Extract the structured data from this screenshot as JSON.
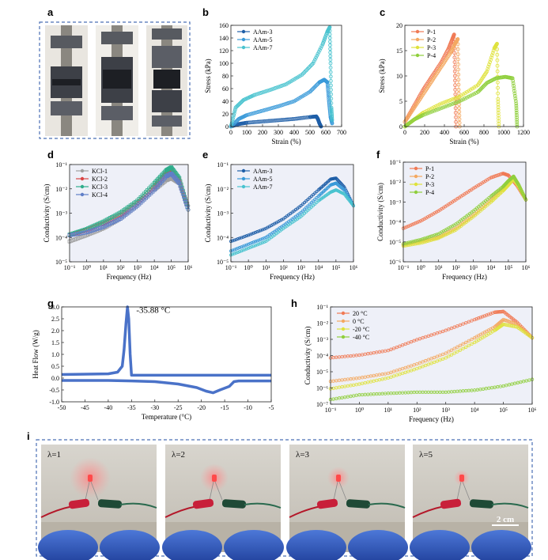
{
  "panels": {
    "a": {
      "label": "a"
    },
    "b": {
      "label": "b",
      "chart_data": {
        "type": "line",
        "xlabel": "Strain (%)",
        "ylabel": "Stress (kPa)",
        "xlim": [
          0,
          700
        ],
        "ylim": [
          0,
          160
        ],
        "xticks": [
          "0",
          "100",
          "200",
          "300",
          "400",
          "500",
          "600",
          "700"
        ],
        "yticks": [
          "0",
          "20",
          "40",
          "60",
          "80",
          "100",
          "120",
          "140",
          "160"
        ],
        "legend_position": "top-left",
        "series": [
          {
            "name": "AAm-3",
            "color": "#1f5fa8",
            "x": [
              0,
              50,
              100,
              200,
              300,
              400,
              500,
              540,
              550,
              560,
              570
            ],
            "y": [
              0,
              4,
              6,
              8,
              10,
              12,
              15,
              16,
              12,
              5,
              0
            ]
          },
          {
            "name": "AAm-5",
            "color": "#3a9ad9",
            "x": [
              0,
              50,
              100,
              200,
              300,
              400,
              500,
              560,
              590,
              610,
              620,
              630,
              640
            ],
            "y": [
              0,
              12,
              18,
              25,
              32,
              40,
              55,
              70,
              74,
              70,
              40,
              15,
              5
            ]
          },
          {
            "name": "AAm-7",
            "color": "#49c3cf",
            "x": [
              0,
              30,
              80,
              150,
              250,
              350,
              450,
              520,
              580,
              610,
              625,
              630,
              635,
              640
            ],
            "y": [
              0,
              30,
              42,
              50,
              58,
              67,
              82,
              100,
              130,
              150,
              157,
              100,
              30,
              10
            ]
          }
        ]
      }
    },
    "c": {
      "label": "c",
      "chart_data": {
        "type": "line",
        "xlabel": "Strain (%)",
        "ylabel": "Stress (kPa)",
        "xlim": [
          0,
          1300
        ],
        "ylim": [
          0,
          22
        ],
        "xticks": [
          "0",
          "200",
          "400",
          "600",
          "800",
          "1000",
          "1200"
        ],
        "yticks": [
          "0",
          "5",
          "10",
          "15",
          "20"
        ],
        "legend_position": "top-left",
        "series": [
          {
            "name": "P-1",
            "color": "#f07a55",
            "x": [
              0,
              100,
              200,
              300,
              400,
              480,
              520,
              540,
              550,
              560
            ],
            "y": [
              1,
              4.5,
              8,
              11,
              14,
              17,
              19,
              20,
              10,
              0
            ]
          },
          {
            "name": "P-2",
            "color": "#f4a860",
            "x": [
              0,
              100,
              200,
              300,
              400,
              500,
              550,
              580,
              590,
              600
            ],
            "y": [
              1,
              4,
              7,
              10,
              13,
              16,
              18,
              19,
              8,
              0
            ]
          },
          {
            "name": "P-3",
            "color": "#dfe23c",
            "x": [
              0,
              100,
              200,
              400,
              600,
              800,
              900,
              980,
              1010,
              1020,
              1030
            ],
            "y": [
              0,
              1.5,
              3,
              5,
              6.5,
              9,
              12,
              17,
              18,
              6,
              0
            ]
          },
          {
            "name": "P-4",
            "color": "#8fcf3c",
            "x": [
              0,
              100,
              200,
              400,
              600,
              800,
              900,
              1000,
              1100,
              1180,
              1220,
              1230
            ],
            "y": [
              0,
              1.5,
              2.5,
              4,
              5.5,
              7.5,
              9.5,
              10.5,
              10.8,
              10.5,
              5,
              0
            ]
          }
        ]
      }
    },
    "d": {
      "label": "d",
      "chart_data": {
        "type": "scatter",
        "xlabel": "Frequency (Hz)",
        "ylabel": "Conductivity (S/cm)",
        "x_scale": "log",
        "y_scale": "log",
        "xlim": [
          0.1,
          1000000
        ],
        "ylim": [
          1e-05,
          0.2
        ],
        "xticks": [
          "10⁻¹",
          "10⁰",
          "10¹",
          "10²",
          "10³",
          "10⁴",
          "10⁵",
          "10⁶"
        ],
        "yticks": [
          "10⁻⁵",
          "10⁻⁴",
          "10⁻³",
          "10⁻²",
          "10⁻¹"
        ],
        "legend_position": "top-left",
        "series": [
          {
            "name": "KCl-1",
            "color": "#a0a0a0",
            "x": [
              0.1,
              1,
              10,
              100,
              1000,
              10000,
              50000,
              100000,
              300000,
              1000000
            ],
            "y": [
              8e-05,
              0.00015,
              0.0003,
              0.0008,
              0.003,
              0.015,
              0.04,
              0.05,
              0.03,
              0.003
            ]
          },
          {
            "name": "KCl-2",
            "color": "#d94545",
            "x": [
              0.1,
              1,
              10,
              100,
              1000,
              10000,
              50000,
              100000,
              300000,
              1000000
            ],
            "y": [
              0.00015,
              0.00025,
              0.0005,
              0.0012,
              0.004,
              0.02,
              0.09,
              0.12,
              0.04,
              0.002
            ]
          },
          {
            "name": "KCl-3",
            "color": "#2fae8c",
            "x": [
              0.1,
              1,
              10,
              100,
              1000,
              10000,
              50000,
              100000,
              300000,
              1000000
            ],
            "y": [
              0.00016,
              0.00028,
              0.0006,
              0.0015,
              0.005,
              0.03,
              0.11,
              0.15,
              0.05,
              0.002
            ]
          },
          {
            "name": "KCl-4",
            "color": "#5f7fc8",
            "x": [
              0.1,
              1,
              10,
              100,
              1000,
              10000,
              50000,
              100000,
              300000,
              1000000
            ],
            "y": [
              0.00015,
              0.0002,
              0.00035,
              0.0008,
              0.003,
              0.015,
              0.06,
              0.08,
              0.03,
              0.002
            ]
          }
        ]
      }
    },
    "e": {
      "label": "e",
      "chart_data": {
        "type": "scatter",
        "xlabel": "Frequency (Hz)",
        "ylabel": "Conductivity (S/cm)",
        "x_scale": "log",
        "y_scale": "log",
        "xlim": [
          0.1,
          1000000
        ],
        "ylim": [
          1e-05,
          0.2
        ],
        "xticks": [
          "10⁻¹",
          "10⁰",
          "10¹",
          "10²",
          "10³",
          "10⁴",
          "10⁵",
          "10⁶"
        ],
        "yticks": [
          "10⁻⁵",
          "10⁻⁴",
          "10⁻³",
          "10⁻²",
          "10⁻¹"
        ],
        "legend_position": "top-left",
        "series": [
          {
            "name": "AAm-3",
            "color": "#1f5fa8",
            "x": [
              0.1,
              1,
              10,
              100,
              1000,
              10000,
              50000,
              100000,
              300000,
              1000000
            ],
            "y": [
              8e-05,
              0.00015,
              0.0003,
              0.0008,
              0.003,
              0.015,
              0.045,
              0.05,
              0.02,
              0.003
            ]
          },
          {
            "name": "AAm-5",
            "color": "#3a9ad9",
            "x": [
              0.1,
              1,
              10,
              100,
              1000,
              10000,
              50000,
              100000,
              300000,
              1000000
            ],
            "y": [
              3e-05,
              6e-05,
              0.00012,
              0.0004,
              0.0015,
              0.008,
              0.025,
              0.03,
              0.015,
              0.003
            ]
          },
          {
            "name": "AAm-7",
            "color": "#49c3cf",
            "x": [
              0.1,
              1,
              10,
              100,
              1000,
              10000,
              50000,
              100000,
              300000,
              1000000
            ],
            "y": [
              2e-05,
              4e-05,
              8e-05,
              0.0003,
              0.001,
              0.005,
              0.012,
              0.015,
              0.01,
              0.003
            ]
          }
        ]
      }
    },
    "f": {
      "label": "f",
      "chart_data": {
        "type": "scatter",
        "xlabel": "Frequency (Hz)",
        "ylabel": "Conductivity (S/cm)",
        "x_scale": "log",
        "y_scale": "log",
        "xlim": [
          0.1,
          1000000
        ],
        "ylim": [
          1e-06,
          0.2
        ],
        "xticks": [
          "10⁻¹",
          "10⁰",
          "10¹",
          "10²",
          "10³",
          "10⁴",
          "10⁵",
          "10⁶"
        ],
        "yticks": [
          "10⁻⁶",
          "10⁻⁵",
          "10⁻⁴",
          "10⁻³",
          "10⁻²",
          "10⁻¹"
        ],
        "legend_position": "top-left",
        "series": [
          {
            "name": "P-1",
            "color": "#f07a55",
            "x": [
              0.1,
              1,
              10,
              100,
              1000,
              10000,
              50000,
              100000,
              300000,
              1000000
            ],
            "y": [
              6e-05,
              0.00015,
              0.0005,
              0.002,
              0.008,
              0.03,
              0.05,
              0.04,
              0.012,
              0.002
            ]
          },
          {
            "name": "P-2",
            "color": "#f4a860",
            "x": [
              0.1,
              1,
              10,
              100,
              1000,
              10000,
              50000,
              100000,
              200000,
              400000,
              1000000
            ],
            "y": [
              8e-06,
              1.2e-05,
              2e-05,
              6e-05,
              0.0003,
              0.002,
              0.008,
              0.015,
              0.03,
              0.01,
              0.002
            ]
          },
          {
            "name": "P-3",
            "color": "#dfe23c",
            "x": [
              0.1,
              1,
              10,
              100,
              1000,
              10000,
              50000,
              100000,
              200000,
              400000,
              1000000
            ],
            "y": [
              7e-06,
              1e-05,
              1.8e-05,
              5e-05,
              0.00025,
              0.0015,
              0.006,
              0.012,
              0.025,
              0.01,
              0.002
            ]
          },
          {
            "name": "P-4",
            "color": "#8fcf3c",
            "x": [
              0.1,
              1,
              10,
              100,
              1000,
              10000,
              50000,
              100000,
              200000,
              400000,
              1000000
            ],
            "y": [
              9e-06,
              1.5e-05,
              3e-05,
              0.0001,
              0.0005,
              0.003,
              0.01,
              0.02,
              0.035,
              0.012,
              0.002
            ]
          }
        ]
      }
    },
    "g": {
      "label": "g",
      "chart_data": {
        "type": "line",
        "xlabel": "Temperature (°C)",
        "ylabel": "Heat Flow (W/g)",
        "xlim": [
          -50,
          -5
        ],
        "ylim": [
          -1.0,
          3.0
        ],
        "xticks": [
          "-50",
          "-45",
          "-40",
          "-35",
          "-30",
          "-25",
          "-20",
          "-15",
          "-10",
          "-5"
        ],
        "yticks": [
          "-1.0",
          "-0.5",
          "0.0",
          "0.5",
          "1.0",
          "1.5",
          "2.0",
          "2.5",
          "3.0"
        ],
        "annotation": "-35.88 °C",
        "series": [
          {
            "color": "#4a72c8",
            "x": [
              -50,
              -40,
              -38,
              -37,
              -36.6,
              -36.2,
              -35.88,
              -35.6,
              -35.3,
              -35,
              -30,
              -20,
              -10,
              -5
            ],
            "y": [
              0.15,
              0.18,
              0.25,
              0.5,
              1.2,
              2.3,
              3.0,
              2.5,
              1.0,
              0.12,
              0.12,
              0.12,
              0.12,
              0.12
            ]
          },
          {
            "color": "#4a72c8",
            "x": [
              -50,
              -40,
              -35,
              -30,
              -25,
              -21,
              -19,
              -17.5,
              -16,
              -14,
              -13,
              -12,
              -10,
              -5
            ],
            "y": [
              -0.1,
              -0.1,
              -0.12,
              -0.15,
              -0.25,
              -0.4,
              -0.55,
              -0.62,
              -0.5,
              -0.35,
              -0.15,
              -0.12,
              -0.12,
              -0.12
            ]
          }
        ]
      }
    },
    "h": {
      "label": "h",
      "chart_data": {
        "type": "scatter",
        "xlabel": "Frequency (Hz)",
        "ylabel": "Conductivity (S/cm)",
        "x_scale": "log",
        "y_scale": "log",
        "xlim": [
          0.1,
          1000000
        ],
        "ylim": [
          1e-07,
          0.2
        ],
        "xticks": [
          "10⁻¹",
          "10⁰",
          "10¹",
          "10²",
          "10³",
          "10⁴",
          "10⁵",
          "10⁶"
        ],
        "yticks": [
          "10⁻⁷",
          "10⁻⁶",
          "10⁻⁵",
          "10⁻⁴",
          "10⁻³",
          "10⁻²",
          "10⁻¹"
        ],
        "legend_position": "top-left",
        "series": [
          {
            "name": "20 °C",
            "color": "#f07a55",
            "x": [
              0.1,
              1,
              10,
              100,
              1000,
              10000,
              50000,
              100000,
              300000,
              1000000
            ],
            "y": [
              0.0001,
              0.00015,
              0.0003,
              0.0015,
              0.006,
              0.03,
              0.09,
              0.1,
              0.02,
              0.002
            ]
          },
          {
            "name": "0 °C",
            "color": "#f4a860",
            "x": [
              0.1,
              1,
              10,
              100,
              1000,
              10000,
              50000,
              100000,
              300000,
              1000000
            ],
            "y": [
              3e-06,
              5e-06,
              1e-05,
              4e-05,
              0.0002,
              0.002,
              0.01,
              0.03,
              0.015,
              0.002
            ]
          },
          {
            "name": "-20 °C",
            "color": "#dfe23c",
            "x": [
              0.1,
              1,
              10,
              100,
              1000,
              10000,
              50000,
              100000,
              300000,
              1000000
            ],
            "y": [
              1e-06,
              2e-06,
              5e-06,
              2e-05,
              0.0001,
              0.001,
              0.006,
              0.015,
              0.01,
              0.002
            ]
          },
          {
            "name": "-40 °C",
            "color": "#8fcf3c",
            "x": [
              0.1,
              1,
              10,
              100,
              1000,
              10000,
              100000,
              1000000
            ],
            "y": [
              2e-07,
              4e-07,
              5e-07,
              6e-07,
              6e-07,
              8e-07,
              1.5e-06,
              4e-06
            ]
          }
        ]
      }
    },
    "i": {
      "label": "i",
      "photos": [
        {
          "lambda_label": "λ=1"
        },
        {
          "lambda_label": "λ=2"
        },
        {
          "lambda_label": "λ=3"
        },
        {
          "lambda_label": "λ=5"
        }
      ],
      "scale_bar": "2 cm"
    }
  }
}
